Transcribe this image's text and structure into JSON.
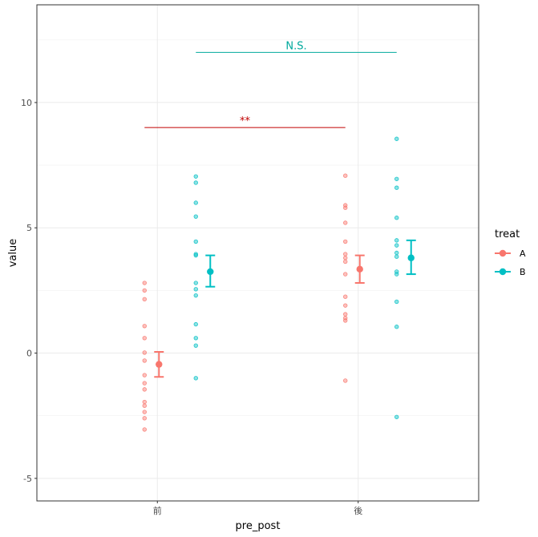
{
  "chart_data": {
    "type": "scatter",
    "xlabel": "pre_post",
    "ylabel": "value",
    "categories": [
      "前",
      "後"
    ],
    "ylim": [
      -5.9,
      13.9
    ],
    "yticks": [
      -5,
      0,
      5,
      10
    ],
    "grid": true,
    "legend": {
      "title": "treat",
      "position": "right",
      "entries": [
        "A",
        "B"
      ]
    },
    "colors": {
      "A": "#F8766D",
      "B": "#00BFC4",
      "sig_red": "#C00000",
      "sig_teal": "#00A99D"
    },
    "series": [
      {
        "name": "A",
        "points": [
          {
            "category": "前",
            "values": [
              2.8,
              2.5,
              2.15,
              1.08,
              0.6,
              0.02,
              -0.3,
              -0.88,
              -1.2,
              -1.45,
              -1.95,
              -2.1,
              -2.35,
              -2.6,
              -3.05
            ]
          },
          {
            "category": "後",
            "values": [
              7.08,
              5.9,
              5.8,
              5.2,
              4.45,
              3.95,
              3.8,
              3.65,
              3.15,
              2.25,
              1.9,
              1.55,
              1.4,
              1.3,
              -1.1
            ]
          }
        ],
        "means": [
          {
            "category": "前",
            "mean": -0.45,
            "lower": -0.95,
            "upper": 0.05
          },
          {
            "category": "後",
            "mean": 3.35,
            "lower": 2.8,
            "upper": 3.9
          }
        ]
      },
      {
        "name": "B",
        "points": [
          {
            "category": "前",
            "values": [
              7.05,
              6.8,
              6.0,
              5.45,
              4.45,
              3.95,
              3.9,
              2.8,
              2.55,
              2.3,
              1.15,
              0.6,
              0.3,
              -1.0
            ]
          },
          {
            "category": "後",
            "values": [
              8.55,
              6.95,
              6.6,
              5.4,
              4.5,
              4.3,
              4.0,
              3.85,
              3.25,
              3.15,
              2.05,
              1.05,
              -2.55
            ]
          }
        ],
        "means": [
          {
            "category": "前",
            "mean": 3.25,
            "lower": 2.65,
            "upper": 3.9
          },
          {
            "category": "後",
            "mean": 3.8,
            "lower": 3.15,
            "upper": 4.5
          }
        ]
      }
    ],
    "annotations": [
      {
        "label": "**",
        "y": 9.0,
        "from": "前",
        "to": "後",
        "series_from": "A",
        "series_to": "A",
        "color": "sig_red"
      },
      {
        "label": "N.S.",
        "y": 12.0,
        "from": "前",
        "to": "後",
        "series_from": "B",
        "series_to": "B",
        "color": "sig_teal"
      }
    ]
  }
}
